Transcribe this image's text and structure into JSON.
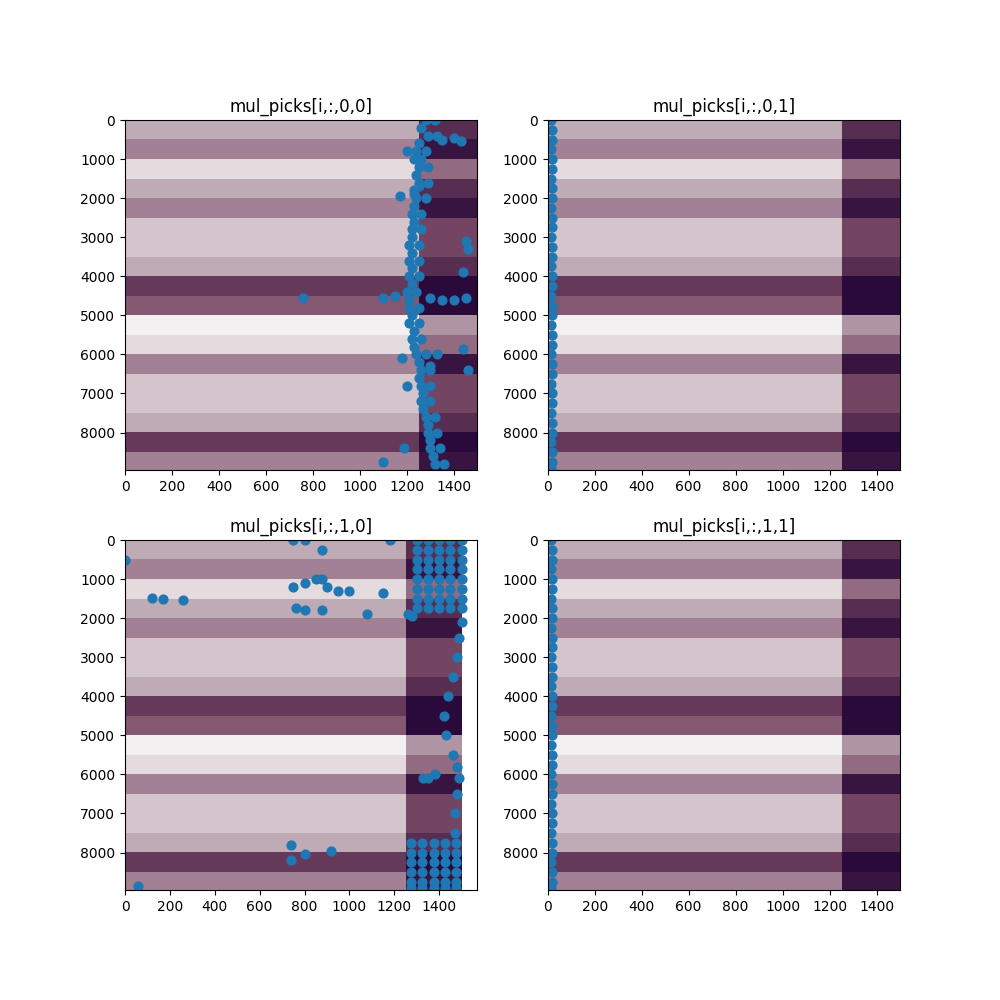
{
  "chart_data": [
    {
      "type": "scatter",
      "title": "mul_picks[i,:,0,0]",
      "color": "#1f77b4",
      "marker": "circle",
      "xlim": [
        0,
        1500
      ],
      "ylim": [
        8960,
        0
      ],
      "xticks": [
        0,
        200,
        400,
        600,
        800,
        1000,
        1200,
        1400
      ],
      "yticks": [
        0,
        1000,
        2000,
        3000,
        4000,
        5000,
        6000,
        7000,
        8000
      ],
      "cells_x_range": [
        0,
        1500
      ],
      "cells_y_range": [
        0,
        9000
      ],
      "cells": [
        [
          0.5,
          0.5,
          0.5,
          0.5,
          0.5,
          0.85
        ],
        [
          0.6,
          0.6,
          0.6,
          0.6,
          0.6,
          0.95
        ],
        [
          0.3,
          0.3,
          0.3,
          0.3,
          0.3,
          0.65
        ],
        [
          0.5,
          0.5,
          0.5,
          0.5,
          0.5,
          0.85
        ],
        [
          0.6,
          0.6,
          0.6,
          0.6,
          0.6,
          0.95
        ],
        [
          0.4,
          0.4,
          0.4,
          0.4,
          0.4,
          0.75
        ],
        [
          0.4,
          0.4,
          0.4,
          0.4,
          0.4,
          0.75
        ],
        [
          0.5,
          0.5,
          0.5,
          0.5,
          0.5,
          0.85
        ],
        [
          0.8,
          0.8,
          0.8,
          0.8,
          0.8,
          1.0
        ],
        [
          0.7,
          0.7,
          0.7,
          0.7,
          0.7,
          1.0
        ],
        [
          0.2,
          0.2,
          0.2,
          0.2,
          0.2,
          0.55
        ],
        [
          0.3,
          0.3,
          0.3,
          0.3,
          0.3,
          0.65
        ],
        [
          0.6,
          0.6,
          0.6,
          0.6,
          0.6,
          0.95
        ],
        [
          0.4,
          0.4,
          0.4,
          0.4,
          0.4,
          0.75
        ],
        [
          0.4,
          0.4,
          0.4,
          0.4,
          0.4,
          0.75
        ],
        [
          0.5,
          0.5,
          0.5,
          0.5,
          0.5,
          0.85
        ],
        [
          0.8,
          0.8,
          0.8,
          0.8,
          0.8,
          1.0
        ],
        [
          0.6,
          0.6,
          0.6,
          0.6,
          0.6,
          0.95
        ]
      ],
      "x": [
        1280,
        1260,
        1290,
        1250,
        1240,
        1260,
        1250,
        1240,
        1250,
        1230,
        1240,
        1230,
        1220,
        1230,
        1220,
        1220,
        1210,
        1220,
        1210,
        1220,
        1210,
        1220,
        1200,
        1210,
        1210,
        1220,
        1210,
        1230,
        1220,
        1230,
        1240,
        1250,
        1260,
        1250,
        1260,
        1270,
        1260,
        1270,
        1280,
        1290,
        1290,
        1300,
        1300,
        1310,
        1320,
        1320,
        1330,
        1280,
        1290,
        1290,
        1280,
        1260,
        1260,
        1250,
        1250,
        1250,
        1240,
        1250,
        1250,
        1260,
        1280,
        1300,
        1300,
        1300,
        1320,
        1330,
        1340,
        1360,
        1200,
        1230,
        1170,
        1230,
        1450,
        1460,
        1440,
        760,
        1100,
        1150,
        1300,
        1400,
        1450,
        1350,
        1440,
        1460,
        1180,
        1200,
        1190,
        1100,
        1350,
        1400,
        1430,
        1300,
        1330,
        1250
      ],
      "y": [
        0,
        200,
        400,
        600,
        800,
        1000,
        1200,
        1400,
        1600,
        1800,
        2000,
        2200,
        2400,
        2600,
        2800,
        3000,
        3200,
        3400,
        3600,
        3800,
        4000,
        4200,
        4400,
        4600,
        4800,
        5000,
        5200,
        5400,
        5600,
        5800,
        6000,
        6200,
        6400,
        6600,
        6800,
        7000,
        7200,
        7400,
        7600,
        7800,
        8000,
        8200,
        8400,
        8600,
        8800,
        0,
        400,
        800,
        1200,
        1600,
        2000,
        2400,
        2800,
        3200,
        3600,
        4000,
        4400,
        4800,
        5200,
        5600,
        6000,
        6400,
        6800,
        7200,
        7600,
        8000,
        8400,
        8800,
        800,
        1000,
        1950,
        1900,
        3100,
        3300,
        3900,
        4550,
        4550,
        4500,
        4550,
        4600,
        4550,
        4600,
        5850,
        6400,
        6100,
        6800,
        8400,
        8750,
        500,
        450,
        550,
        6300,
        6000,
        1700
      ]
    },
    {
      "type": "scatter",
      "title": "mul_picks[i,:,0,1]",
      "color": "#1f77b4",
      "marker": "circle",
      "xlim": [
        0,
        1500
      ],
      "ylim": [
        8960,
        0
      ],
      "xticks": [
        0,
        200,
        400,
        600,
        800,
        1000,
        1200,
        1400
      ],
      "yticks": [
        0,
        1000,
        2000,
        3000,
        4000,
        5000,
        6000,
        7000,
        8000
      ],
      "cells_x_range": [
        0,
        1500
      ],
      "cells_y_range": [
        0,
        9000
      ],
      "cells": [
        [
          0.5,
          0.5,
          0.5,
          0.5,
          0.5,
          0.85
        ],
        [
          0.6,
          0.6,
          0.6,
          0.6,
          0.6,
          0.95
        ],
        [
          0.3,
          0.3,
          0.3,
          0.3,
          0.3,
          0.65
        ],
        [
          0.5,
          0.5,
          0.5,
          0.5,
          0.5,
          0.85
        ],
        [
          0.6,
          0.6,
          0.6,
          0.6,
          0.6,
          0.95
        ],
        [
          0.4,
          0.4,
          0.4,
          0.4,
          0.4,
          0.75
        ],
        [
          0.4,
          0.4,
          0.4,
          0.4,
          0.4,
          0.75
        ],
        [
          0.5,
          0.5,
          0.5,
          0.5,
          0.5,
          0.85
        ],
        [
          0.8,
          0.8,
          0.8,
          0.8,
          0.8,
          1.0
        ],
        [
          0.7,
          0.7,
          0.7,
          0.7,
          0.7,
          1.0
        ],
        [
          0.2,
          0.2,
          0.2,
          0.2,
          0.2,
          0.55
        ],
        [
          0.3,
          0.3,
          0.3,
          0.3,
          0.3,
          0.65
        ],
        [
          0.6,
          0.6,
          0.6,
          0.6,
          0.6,
          0.95
        ],
        [
          0.4,
          0.4,
          0.4,
          0.4,
          0.4,
          0.75
        ],
        [
          0.4,
          0.4,
          0.4,
          0.4,
          0.4,
          0.75
        ],
        [
          0.5,
          0.5,
          0.5,
          0.5,
          0.5,
          0.85
        ],
        [
          0.8,
          0.8,
          0.8,
          0.8,
          0.8,
          1.0
        ],
        [
          0.6,
          0.6,
          0.6,
          0.6,
          0.6,
          0.95
        ]
      ],
      "x": [
        15,
        20,
        18,
        15,
        20,
        18,
        15,
        20,
        18,
        15,
        20,
        18,
        15,
        20,
        18,
        15,
        20,
        18,
        15,
        20,
        18,
        15,
        20,
        18,
        15,
        20,
        18,
        15,
        20,
        18,
        15,
        20,
        18,
        15,
        20,
        18,
        15
      ],
      "y": [
        0,
        250,
        500,
        750,
        1000,
        1250,
        1500,
        1750,
        2000,
        2250,
        2500,
        2750,
        3000,
        3250,
        3500,
        3750,
        4000,
        4250,
        4500,
        4750,
        5000,
        5250,
        5500,
        5750,
        6000,
        6250,
        6500,
        6750,
        7000,
        7250,
        7500,
        7750,
        8000,
        8250,
        8500,
        8750,
        8900
      ]
    },
    {
      "type": "scatter",
      "title": "mul_picks[i,:,1,0]",
      "color": "#1f77b4",
      "marker": "circle",
      "xlim": [
        0,
        1570
      ],
      "ylim": [
        8960,
        0
      ],
      "xticks": [
        0,
        200,
        400,
        600,
        800,
        1000,
        1200,
        1400
      ],
      "yticks": [
        0,
        1000,
        2000,
        3000,
        4000,
        5000,
        6000,
        7000,
        8000
      ],
      "cells_x_range": [
        0,
        1500
      ],
      "cells_y_range": [
        0,
        9000
      ],
      "cells": [
        [
          0.5,
          0.5,
          0.5,
          0.5,
          0.5,
          0.85
        ],
        [
          0.6,
          0.6,
          0.6,
          0.6,
          0.6,
          0.95
        ],
        [
          0.3,
          0.3,
          0.3,
          0.3,
          0.3,
          0.65
        ],
        [
          0.5,
          0.5,
          0.5,
          0.5,
          0.5,
          0.85
        ],
        [
          0.6,
          0.6,
          0.6,
          0.6,
          0.6,
          0.95
        ],
        [
          0.4,
          0.4,
          0.4,
          0.4,
          0.4,
          0.75
        ],
        [
          0.4,
          0.4,
          0.4,
          0.4,
          0.4,
          0.75
        ],
        [
          0.5,
          0.5,
          0.5,
          0.5,
          0.5,
          0.85
        ],
        [
          0.8,
          0.8,
          0.8,
          0.8,
          0.8,
          1.0
        ],
        [
          0.7,
          0.7,
          0.7,
          0.7,
          0.7,
          1.0
        ],
        [
          0.2,
          0.2,
          0.2,
          0.2,
          0.2,
          0.55
        ],
        [
          0.3,
          0.3,
          0.3,
          0.3,
          0.3,
          0.65
        ],
        [
          0.6,
          0.6,
          0.6,
          0.6,
          0.6,
          0.95
        ],
        [
          0.4,
          0.4,
          0.4,
          0.4,
          0.4,
          0.75
        ],
        [
          0.4,
          0.4,
          0.4,
          0.4,
          0.4,
          0.75
        ],
        [
          0.5,
          0.5,
          0.5,
          0.5,
          0.5,
          0.85
        ],
        [
          0.8,
          0.8,
          0.8,
          0.8,
          0.8,
          1.0
        ],
        [
          0.6,
          0.6,
          0.6,
          0.6,
          0.6,
          0.95
        ]
      ],
      "x": [
        1300,
        1350,
        1400,
        1450,
        1500,
        1300,
        1350,
        1400,
        1450,
        1500,
        1300,
        1350,
        1400,
        1450,
        1500,
        1300,
        1350,
        1400,
        1450,
        1500,
        1300,
        1350,
        1400,
        1450,
        1500,
        1300,
        1350,
        1400,
        1450,
        1500,
        1300,
        1350,
        1400,
        1450,
        1500,
        1300,
        1350,
        1400,
        1450,
        1500,
        1275,
        1325,
        1375,
        1425,
        1475,
        1275,
        1325,
        1375,
        1425,
        1475,
        1275,
        1325,
        1375,
        1425,
        1475,
        1275,
        1325,
        1375,
        1425,
        1475,
        1275,
        1325,
        1375,
        1425,
        1475,
        1275,
        1325,
        1375,
        1425,
        1475,
        1500,
        1490,
        1480,
        1460,
        1440,
        1420,
        1430,
        1460,
        1480,
        1490,
        1480,
        1470,
        1470,
        1330,
        1350,
        1380,
        0,
        750,
        800,
        880,
        1180,
        120,
        170,
        260,
        750,
        800,
        850,
        880,
        900,
        950,
        1000,
        1080,
        760,
        800,
        880,
        1150,
        740,
        740,
        800,
        920,
        60,
        1260,
        1280
      ],
      "y": [
        0,
        0,
        0,
        0,
        0,
        250,
        250,
        250,
        250,
        250,
        500,
        500,
        500,
        500,
        500,
        750,
        750,
        750,
        750,
        750,
        1000,
        1000,
        1000,
        1000,
        1000,
        1250,
        1250,
        1250,
        1250,
        1250,
        1500,
        1500,
        1500,
        1500,
        1500,
        1750,
        1750,
        1750,
        1750,
        1750,
        7750,
        7750,
        7750,
        7750,
        7750,
        8000,
        8000,
        8000,
        8000,
        8000,
        8250,
        8250,
        8250,
        8250,
        8250,
        8500,
        8500,
        8500,
        8500,
        8500,
        8750,
        8750,
        8750,
        8750,
        8750,
        8900,
        8900,
        8900,
        8900,
        8900,
        2100,
        2500,
        3000,
        3500,
        4000,
        4500,
        5000,
        5500,
        5800,
        6100,
        6500,
        7000,
        7500,
        6100,
        6100,
        6000,
        500,
        0,
        0,
        250,
        0,
        1480,
        1520,
        1530,
        1200,
        1100,
        1000,
        1000,
        1200,
        1300,
        1300,
        1900,
        1750,
        1800,
        1800,
        1350,
        7800,
        8200,
        8050,
        7950,
        8850,
        1900,
        1950
      ]
    },
    {
      "type": "scatter",
      "title": "mul_picks[i,:,1,1]",
      "color": "#1f77b4",
      "marker": "circle",
      "xlim": [
        0,
        1500
      ],
      "ylim": [
        8960,
        0
      ],
      "xticks": [
        0,
        200,
        400,
        600,
        800,
        1000,
        1200,
        1400
      ],
      "yticks": [
        0,
        1000,
        2000,
        3000,
        4000,
        5000,
        6000,
        7000,
        8000
      ],
      "cells_x_range": [
        0,
        1500
      ],
      "cells_y_range": [
        0,
        9000
      ],
      "cells": [
        [
          0.5,
          0.5,
          0.5,
          0.5,
          0.5,
          0.85
        ],
        [
          0.6,
          0.6,
          0.6,
          0.6,
          0.6,
          0.95
        ],
        [
          0.3,
          0.3,
          0.3,
          0.3,
          0.3,
          0.65
        ],
        [
          0.5,
          0.5,
          0.5,
          0.5,
          0.5,
          0.85
        ],
        [
          0.6,
          0.6,
          0.6,
          0.6,
          0.6,
          0.95
        ],
        [
          0.4,
          0.4,
          0.4,
          0.4,
          0.4,
          0.75
        ],
        [
          0.4,
          0.4,
          0.4,
          0.4,
          0.4,
          0.75
        ],
        [
          0.5,
          0.5,
          0.5,
          0.5,
          0.5,
          0.85
        ],
        [
          0.8,
          0.8,
          0.8,
          0.8,
          0.8,
          1.0
        ],
        [
          0.7,
          0.7,
          0.7,
          0.7,
          0.7,
          1.0
        ],
        [
          0.2,
          0.2,
          0.2,
          0.2,
          0.2,
          0.55
        ],
        [
          0.3,
          0.3,
          0.3,
          0.3,
          0.3,
          0.65
        ],
        [
          0.6,
          0.6,
          0.6,
          0.6,
          0.6,
          0.95
        ],
        [
          0.4,
          0.4,
          0.4,
          0.4,
          0.4,
          0.75
        ],
        [
          0.4,
          0.4,
          0.4,
          0.4,
          0.4,
          0.75
        ],
        [
          0.5,
          0.5,
          0.5,
          0.5,
          0.5,
          0.85
        ],
        [
          0.8,
          0.8,
          0.8,
          0.8,
          0.8,
          1.0
        ],
        [
          0.6,
          0.6,
          0.6,
          0.6,
          0.6,
          0.95
        ]
      ],
      "x": [
        15,
        20,
        18,
        15,
        20,
        18,
        15,
        20,
        18,
        15,
        20,
        18,
        15,
        20,
        18,
        15,
        20,
        18,
        15,
        20,
        18,
        15,
        20,
        18,
        15,
        20,
        18,
        15,
        20,
        18,
        15,
        20,
        18,
        15,
        20,
        18,
        15
      ],
      "y": [
        0,
        250,
        500,
        750,
        1000,
        1250,
        1500,
        1750,
        2000,
        2250,
        2500,
        2750,
        3000,
        3250,
        3500,
        3750,
        4000,
        4250,
        4500,
        4750,
        5000,
        5250,
        5500,
        5750,
        6000,
        6250,
        6500,
        6750,
        7000,
        7250,
        7500,
        7750,
        8000,
        8250,
        8500,
        8750,
        8900
      ]
    }
  ]
}
